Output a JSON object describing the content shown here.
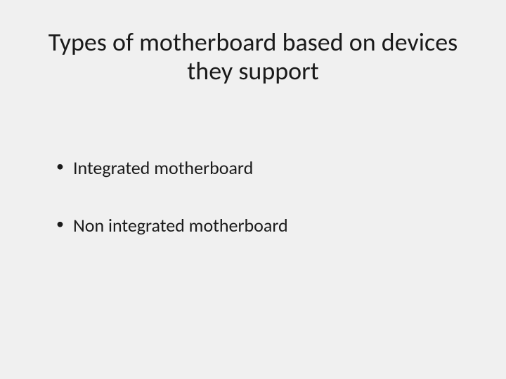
{
  "slide": {
    "background_color": "#f0f0f0",
    "title": {
      "text": "Types of motherboard based on devices they support",
      "fontsize": 36,
      "color": "#1a1a1a",
      "font_weight": 400,
      "align": "center"
    },
    "bullets": [
      {
        "text": "Integrated  motherboard"
      },
      {
        "text": "Non integrated motherboard"
      }
    ],
    "bullet_style": {
      "fontsize": 26,
      "color": "#1a1a1a",
      "marker": "•",
      "spacing_between": 48
    }
  }
}
